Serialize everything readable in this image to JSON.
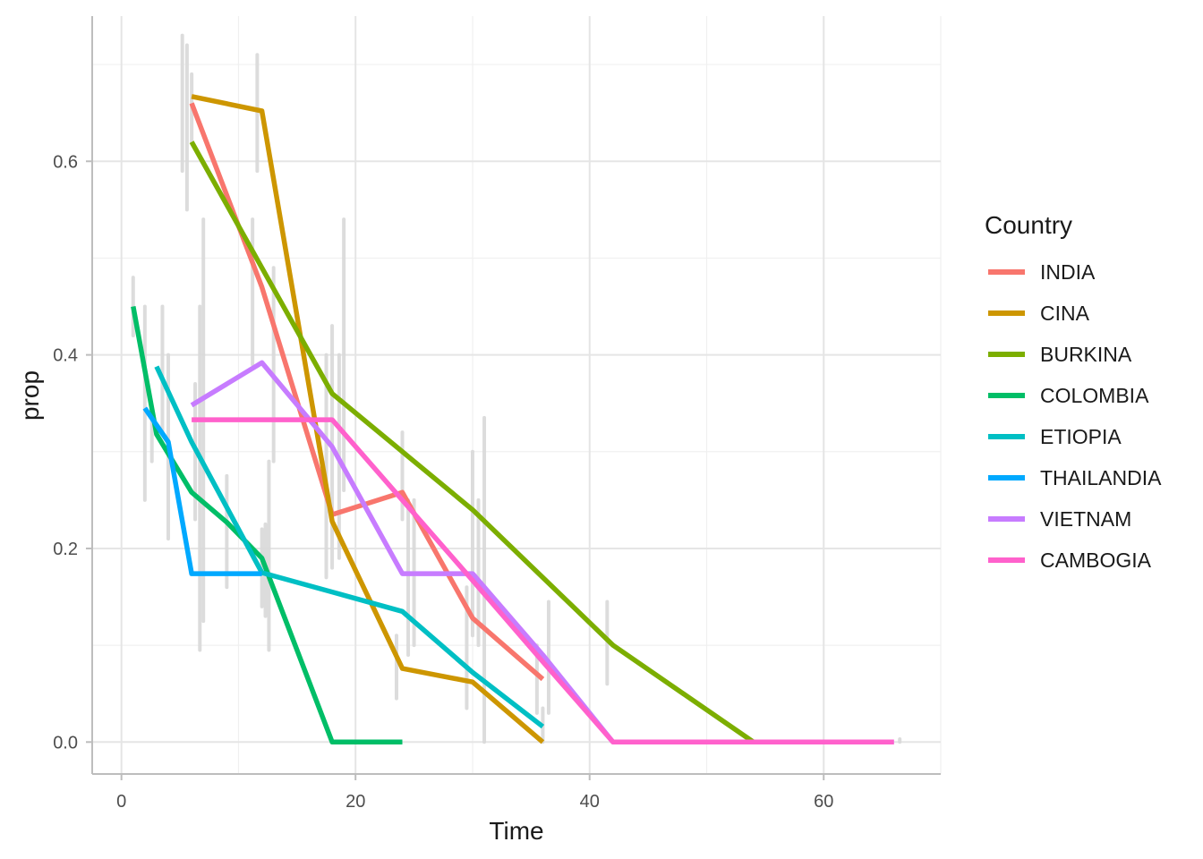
{
  "chart_data": {
    "type": "line",
    "title": "",
    "xlabel": "Time",
    "ylabel": "prop",
    "xlim": [
      -2.5,
      70
    ],
    "ylim": [
      -0.033,
      0.75
    ],
    "x_ticks": [
      0,
      20,
      40,
      60
    ],
    "x_tick_labels": [
      "0",
      "20",
      "40",
      "60"
    ],
    "y_ticks": [
      0.0,
      0.2,
      0.4,
      0.6
    ],
    "y_tick_labels": [
      "0.0",
      "0.2",
      "0.4",
      "0.6"
    ],
    "grid": true,
    "legend": {
      "title": "Country",
      "position": "right"
    },
    "series": [
      {
        "name": "INDIA",
        "color": "#F8766D",
        "x": [
          6,
          12,
          18,
          24,
          30,
          36
        ],
        "y": [
          0.66,
          0.47,
          0.235,
          0.258,
          0.128,
          0.065
        ]
      },
      {
        "name": "CINA",
        "color": "#CD9600",
        "x": [
          6,
          12,
          18,
          24,
          30,
          36
        ],
        "y": [
          0.667,
          0.652,
          0.228,
          0.076,
          0.062,
          0.0
        ]
      },
      {
        "name": "BURKINA",
        "color": "#7CAE00",
        "x": [
          6,
          12,
          18,
          24,
          30,
          36,
          42,
          48,
          54
        ],
        "y": [
          0.62,
          0.49,
          0.36,
          0.3,
          0.24,
          0.17,
          0.1,
          0.05,
          0.0
        ]
      },
      {
        "name": "COLOMBIA",
        "color": "#00BE67",
        "x": [
          1,
          3,
          6,
          9,
          12,
          18,
          24
        ],
        "y": [
          0.45,
          0.318,
          0.258,
          0.227,
          0.19,
          0.0,
          0.0
        ]
      },
      {
        "name": "ETIOPIA",
        "color": "#00BFC4",
        "x": [
          3,
          6,
          12,
          18,
          24,
          30,
          36
        ],
        "y": [
          0.388,
          0.31,
          0.175,
          0.155,
          0.135,
          0.072,
          0.016
        ]
      },
      {
        "name": "THAILANDIA",
        "color": "#00A9FF",
        "x": [
          2,
          4,
          6,
          12
        ],
        "y": [
          0.345,
          0.31,
          0.174,
          0.174
        ]
      },
      {
        "name": "VIETNAM",
        "color": "#C77CFF",
        "x": [
          6,
          12,
          18,
          24,
          30,
          36,
          42,
          66
        ],
        "y": [
          0.348,
          0.392,
          0.305,
          0.174,
          0.174,
          0.09,
          0.0,
          0.0
        ]
      },
      {
        "name": "CAMBOGIA",
        "color": "#FF61CC",
        "x": [
          6,
          12,
          18,
          24,
          30,
          36,
          42,
          66
        ],
        "y": [
          0.333,
          0.333,
          0.333,
          0.25,
          0.167,
          0.083,
          0.0,
          0.0
        ]
      }
    ],
    "error_bars": [
      {
        "x": 1,
        "ymin": 0.42,
        "ymax": 0.48
      },
      {
        "x": 2,
        "ymin": 0.25,
        "ymax": 0.45
      },
      {
        "x": 2.6,
        "ymin": 0.29,
        "ymax": 0.34
      },
      {
        "x": 3.5,
        "ymin": 0.32,
        "ymax": 0.45
      },
      {
        "x": 4,
        "ymin": 0.21,
        "ymax": 0.4
      },
      {
        "x": 5.2,
        "ymin": 0.59,
        "ymax": 0.73
      },
      {
        "x": 5.6,
        "ymin": 0.55,
        "ymax": 0.72
      },
      {
        "x": 6,
        "ymin": 0.62,
        "ymax": 0.69
      },
      {
        "x": 6.3,
        "ymin": 0.23,
        "ymax": 0.37
      },
      {
        "x": 6.7,
        "ymin": 0.095,
        "ymax": 0.45
      },
      {
        "x": 7,
        "ymin": 0.125,
        "ymax": 0.54
      },
      {
        "x": 9,
        "ymin": 0.16,
        "ymax": 0.275
      },
      {
        "x": 11.2,
        "ymin": 0.39,
        "ymax": 0.54
      },
      {
        "x": 11.6,
        "ymin": 0.59,
        "ymax": 0.71
      },
      {
        "x": 12,
        "ymin": 0.14,
        "ymax": 0.22
      },
      {
        "x": 12.3,
        "ymin": 0.13,
        "ymax": 0.225
      },
      {
        "x": 12.6,
        "ymin": 0.095,
        "ymax": 0.29
      },
      {
        "x": 13,
        "ymin": 0.29,
        "ymax": 0.49
      },
      {
        "x": 17.5,
        "ymin": 0.17,
        "ymax": 0.4
      },
      {
        "x": 18,
        "ymin": 0.18,
        "ymax": 0.43
      },
      {
        "x": 18.6,
        "ymin": 0.19,
        "ymax": 0.4
      },
      {
        "x": 19,
        "ymin": 0.26,
        "ymax": 0.54
      },
      {
        "x": 23.5,
        "ymin": 0.045,
        "ymax": 0.11
      },
      {
        "x": 24,
        "ymin": 0.23,
        "ymax": 0.32
      },
      {
        "x": 24.5,
        "ymin": 0.09,
        "ymax": 0.25
      },
      {
        "x": 25,
        "ymin": 0.1,
        "ymax": 0.25
      },
      {
        "x": 29.5,
        "ymin": 0.035,
        "ymax": 0.16
      },
      {
        "x": 30,
        "ymin": 0.11,
        "ymax": 0.3
      },
      {
        "x": 30.5,
        "ymin": 0.1,
        "ymax": 0.25
      },
      {
        "x": 31,
        "ymin": 0.0,
        "ymax": 0.335
      },
      {
        "x": 35.5,
        "ymin": 0.03,
        "ymax": 0.1
      },
      {
        "x": 36,
        "ymin": 0.0,
        "ymax": 0.035
      },
      {
        "x": 36.5,
        "ymin": 0.03,
        "ymax": 0.145
      },
      {
        "x": 41.5,
        "ymin": 0.06,
        "ymax": 0.145
      },
      {
        "x": 66.5,
        "ymin": 0.0,
        "ymax": 0.003
      }
    ]
  }
}
